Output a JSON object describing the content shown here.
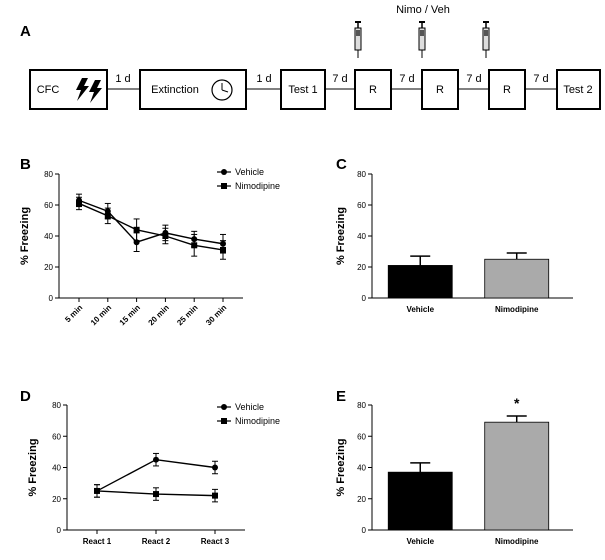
{
  "colors": {
    "vehicle_bar": "#000000",
    "nimodipine_bar": "#aaaaaa",
    "line": "#000000"
  },
  "timeline": {
    "letter": "A",
    "top_label": "Nimo / Veh",
    "boxes": [
      "CFC",
      "Extinction",
      "Test 1",
      "R",
      "R",
      "R",
      "Test 2"
    ],
    "intervals": [
      "1 d",
      "1 d",
      "7 d",
      "7 d",
      "7 d",
      "7 d"
    ],
    "icons": [
      "lightning-bolt-icon",
      "clock-icon",
      "syringe-icon"
    ]
  },
  "chart_data": [
    {
      "id": "B",
      "type": "line",
      "letter": "B",
      "ylabel": "% Freezing",
      "ylim": [
        0,
        80
      ],
      "yticks": [
        "0",
        "20",
        "40",
        "60",
        "80"
      ],
      "categories": [
        "5 min",
        "10 min",
        "15 min",
        "20 min",
        "25 min",
        "30 min"
      ],
      "legend": {
        "placement": "top-right"
      },
      "series": [
        {
          "name": "Vehicle",
          "marker": "circle",
          "values": [
            63,
            56,
            36,
            42,
            38,
            35
          ],
          "errors": [
            4,
            5,
            6,
            5,
            5,
            6
          ]
        },
        {
          "name": "Nimodipine",
          "marker": "square",
          "values": [
            61,
            53,
            44,
            40,
            34,
            31
          ],
          "errors": [
            4,
            5,
            7,
            5,
            7,
            6
          ]
        }
      ]
    },
    {
      "id": "C",
      "type": "bar",
      "letter": "C",
      "ylabel": "% Freezing",
      "ylim": [
        0,
        80
      ],
      "yticks": [
        "0",
        "20",
        "40",
        "60",
        "80"
      ],
      "categories": [
        "Vehicle",
        "Nimodipine"
      ],
      "values": [
        21,
        25
      ],
      "errors": [
        6,
        4
      ]
    },
    {
      "id": "D",
      "type": "line",
      "letter": "D",
      "ylabel": "% Freezing",
      "ylim": [
        0,
        80
      ],
      "yticks": [
        "0",
        "20",
        "40",
        "60",
        "80"
      ],
      "categories": [
        "React 1",
        "React 2",
        "React 3"
      ],
      "legend": {
        "placement": "top-right"
      },
      "series": [
        {
          "name": "Vehicle",
          "marker": "circle",
          "values": [
            25,
            45,
            40
          ],
          "errors": [
            4,
            4,
            4
          ]
        },
        {
          "name": "Nimodipine",
          "marker": "square",
          "values": [
            25,
            23,
            22
          ],
          "errors": [
            4,
            4,
            4
          ]
        }
      ]
    },
    {
      "id": "E",
      "type": "bar",
      "letter": "E",
      "ylabel": "% Freezing",
      "ylim": [
        0,
        80
      ],
      "yticks": [
        "0",
        "20",
        "40",
        "60",
        "80"
      ],
      "categories": [
        "Vehicle",
        "Nimodipine"
      ],
      "values": [
        37,
        69
      ],
      "errors": [
        6,
        4
      ],
      "annotations": [
        "",
        "*"
      ]
    }
  ]
}
